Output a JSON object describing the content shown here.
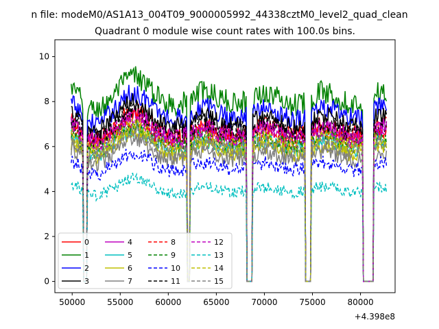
{
  "figure": {
    "suptitle": "n file: modeM0/AS1A13_004T09_9000005992_44338cztM0_level2_quad_clean"
  },
  "chart_data": {
    "type": "line",
    "title": "Quadrant 0 module wise count rates with 100.0s bins.",
    "xlabel": "",
    "ylabel": "",
    "x_offset_label": "+4.398e8",
    "xlim": [
      48200,
      83600
    ],
    "ylim": [
      -0.5,
      10.75
    ],
    "xticks": [
      50000,
      55000,
      60000,
      65000,
      70000,
      75000,
      80000
    ],
    "yticks": [
      0,
      2,
      4,
      6,
      8,
      10
    ],
    "x_start": 49900,
    "x_end": 82700,
    "bin_size": 100,
    "gaps": [
      [
        51200,
        51500
      ],
      [
        62000,
        62200
      ],
      [
        68200,
        68700
      ],
      [
        74300,
        74800
      ],
      [
        80300,
        81300
      ]
    ],
    "legend": {
      "location": "lower left",
      "columns": 4
    },
    "series": [
      {
        "name": "0",
        "color": "#ff0000",
        "dash": "solid",
        "level": 7.1
      },
      {
        "name": "1",
        "color": "#008000",
        "dash": "solid",
        "level": 8.6
      },
      {
        "name": "2",
        "color": "#0000ff",
        "dash": "solid",
        "level": 7.9
      },
      {
        "name": "3",
        "color": "#000000",
        "dash": "solid",
        "level": 7.5
      },
      {
        "name": "4",
        "color": "#bf00bf",
        "dash": "solid",
        "level": 7.0
      },
      {
        "name": "5",
        "color": "#00bfbf",
        "dash": "solid",
        "level": 6.4
      },
      {
        "name": "6",
        "color": "#bfbf00",
        "dash": "solid",
        "level": 6.2
      },
      {
        "name": "7",
        "color": "#808080",
        "dash": "solid",
        "level": 5.9
      },
      {
        "name": "8",
        "color": "#ff0000",
        "dash": "dashed",
        "level": 6.8
      },
      {
        "name": "9",
        "color": "#008000",
        "dash": "dashed",
        "level": 6.6
      },
      {
        "name": "10",
        "color": "#0000ff",
        "dash": "dashed",
        "level": 5.4
      },
      {
        "name": "11",
        "color": "#000000",
        "dash": "dashed",
        "level": 7.2
      },
      {
        "name": "12",
        "color": "#bf00bf",
        "dash": "dashed",
        "level": 6.9
      },
      {
        "name": "13",
        "color": "#00bfbf",
        "dash": "dashed",
        "level": 4.3
      },
      {
        "name": "14",
        "color": "#bfbf00",
        "dash": "dashed",
        "level": 6.5
      },
      {
        "name": "15",
        "color": "#808080",
        "dash": "dashed",
        "level": 6.3
      }
    ]
  }
}
